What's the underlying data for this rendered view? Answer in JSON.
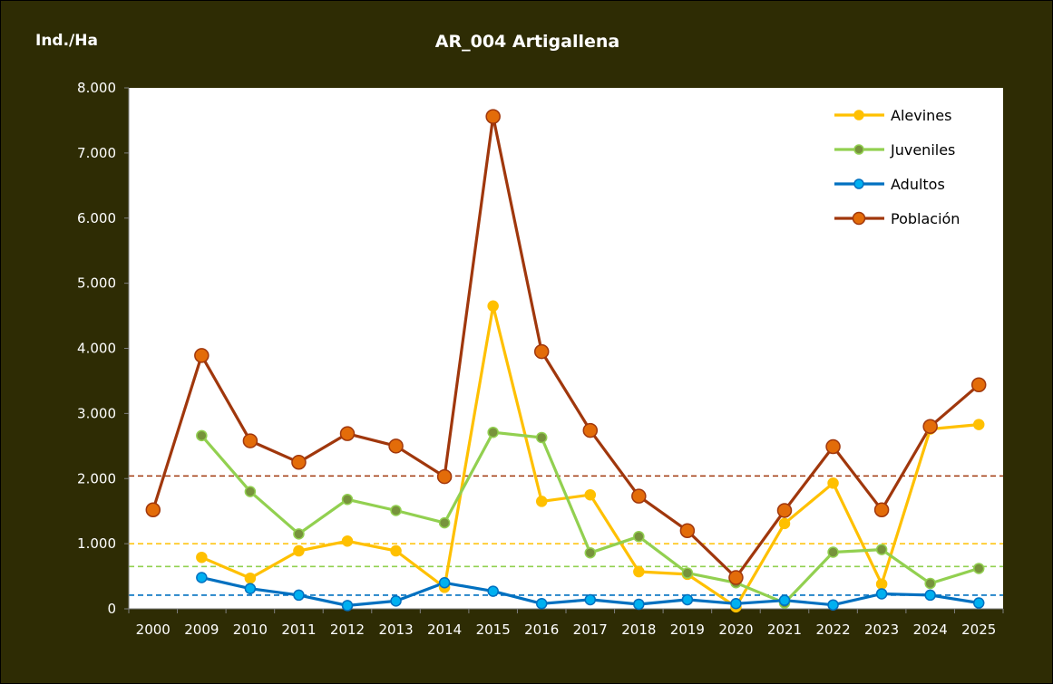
{
  "header": {
    "unit_label": "Ind./Ha",
    "title": "AR_004 Artigallena"
  },
  "chart_data": {
    "type": "line",
    "title": "AR_004 Artigallena",
    "ylabel": "Ind./Ha",
    "xlabel": "",
    "ylim": [
      0,
      8000
    ],
    "yticks": [
      "0",
      "1.000",
      "2.000",
      "3.000",
      "4.000",
      "5.000",
      "6.000",
      "7.000",
      "8.000"
    ],
    "categories": [
      "2000",
      "2009",
      "2010",
      "2011",
      "2012",
      "2013",
      "2014",
      "2015",
      "2016",
      "2017",
      "2018",
      "2019",
      "2020",
      "2021",
      "2022",
      "2023",
      "2024",
      "2025"
    ],
    "series": [
      {
        "name": "Alevines",
        "color": "#ffc000",
        "marker": "#ffc000",
        "values": [
          null,
          790,
          470,
          890,
          1040,
          890,
          330,
          4650,
          1650,
          1750,
          570,
          530,
          30,
          1310,
          1930,
          380,
          2760,
          2830
        ]
      },
      {
        "name": "Juveniles",
        "color": "#92d050",
        "marker": "#77933c",
        "values": [
          null,
          2660,
          1800,
          1150,
          1680,
          1510,
          1320,
          2710,
          2630,
          860,
          1110,
          550,
          400,
          90,
          870,
          910,
          390,
          620
        ]
      },
      {
        "name": "Adultos",
        "color": "#0070c0",
        "marker": "#00b0f0",
        "values": [
          null,
          480,
          310,
          210,
          50,
          120,
          400,
          270,
          80,
          140,
          70,
          140,
          80,
          130,
          60,
          230,
          210,
          90
        ]
      },
      {
        "name": "Población",
        "color": "#a0370c",
        "marker": "#e36c09",
        "values": [
          1520,
          3890,
          2580,
          2250,
          2690,
          2500,
          2030,
          7560,
          3950,
          2740,
          1730,
          1200,
          480,
          1510,
          2490,
          1520,
          2800,
          3440
        ]
      }
    ],
    "reference_lines": [
      {
        "series": "Población",
        "value": 2040,
        "color": "#a0370c",
        "style": "dashed"
      },
      {
        "series": "Alevines",
        "value": 1000,
        "color": "#ffc000",
        "style": "dashed"
      },
      {
        "series": "Juveniles",
        "value": 650,
        "color": "#92d050",
        "style": "dashed"
      },
      {
        "series": "Adultos",
        "value": 210,
        "color": "#0070c0",
        "style": "dashed"
      }
    ],
    "grid": false,
    "legend_position": "top-right"
  }
}
